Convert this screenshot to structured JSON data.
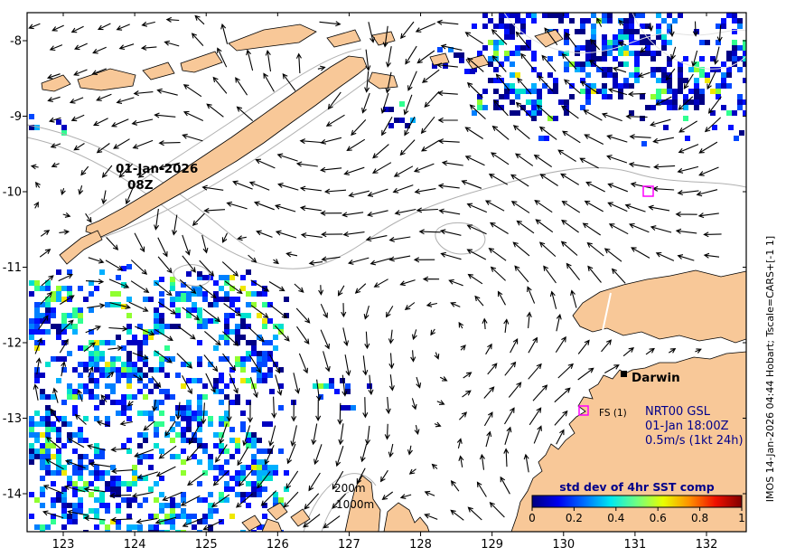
{
  "axes": {
    "lon_ticks": [
      "123",
      "124",
      "125",
      "126",
      "127",
      "128",
      "129",
      "130",
      "131",
      "132"
    ],
    "lat_ticks": [
      "-8",
      "-9",
      "-10",
      "-11",
      "-12",
      "-13",
      "-14"
    ]
  },
  "labels": {
    "timestamp_line1": "01-Jan-2026",
    "timestamp_line2": "08Z",
    "city": "Darwin",
    "station": "FS (1)",
    "info_line1": "NRT00 GSL",
    "info_line2": "01-Jan 18:00Z",
    "info_line3": "0.5m/s (1kt 24h)",
    "depth_200m": "200m",
    "depth_1000m": "1000m",
    "side_caption": "IMOS 14-Jan-2026 04:44 Hobart; Tscale=CARS+[-1 1]"
  },
  "colorbar": {
    "title": "std dev of 4hr SST comp",
    "tick_labels": [
      "0",
      "0.2",
      "0.4",
      "0.6",
      "0.8",
      "1"
    ],
    "gradient": [
      "#00007f",
      "#0000f0",
      "#0070ff",
      "#00e8f0",
      "#70ff80",
      "#e8ff00",
      "#ff9000",
      "#f01000",
      "#800000"
    ]
  },
  "colors": {
    "land": "#f8c898",
    "coastline": "#000000",
    "contour": "#b0b0b0",
    "contour_light": "#e2e2e2",
    "annotation_navy": "#00008b",
    "marker_magenta": "#ff00ff",
    "vector_black": "#000000",
    "pixel_palette": [
      "#000085",
      "#0000c0",
      "#0010ff",
      "#0048ff",
      "#0080ff",
      "#00b0ff",
      "#00e0d0",
      "#30ff90",
      "#90ff30",
      "#f0e800"
    ]
  }
}
